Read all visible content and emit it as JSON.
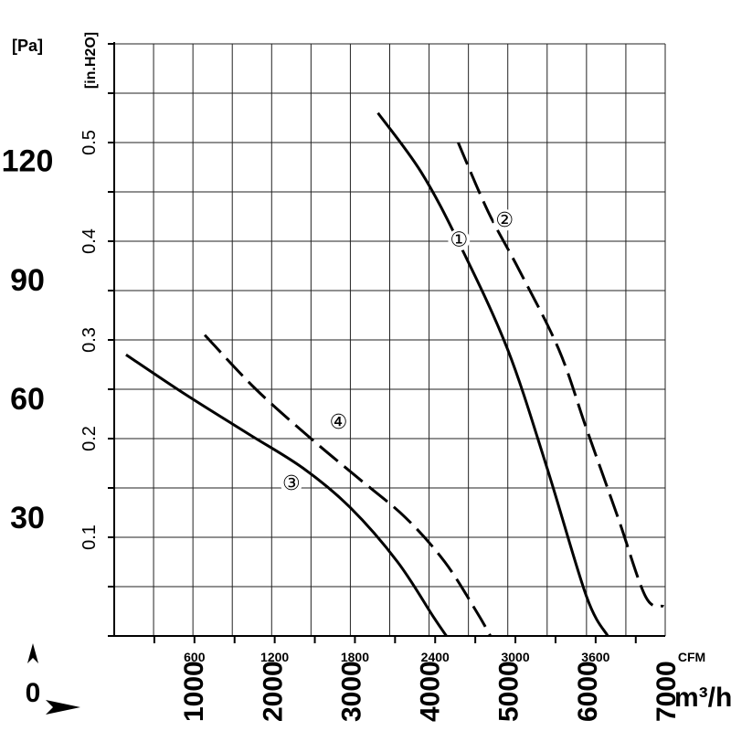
{
  "chart_data": {
    "type": "line",
    "x_units": {
      "primary": "m3/h",
      "secondary": "CFM"
    },
    "y_units": {
      "primary": "Pa",
      "secondary": "in.H2O"
    },
    "xlim": [
      0,
      7000
    ],
    "ylim_inh2o": [
      0,
      0.6
    ],
    "grid": true,
    "labels": {
      "pa_unit": "[Pa]",
      "inh2o_unit": "[in.H2O]",
      "cfm_unit": "CFM",
      "m3h_unit": "m³/h",
      "origin": "0"
    },
    "pa_ticks": [
      {
        "value": 30,
        "label": "30"
      },
      {
        "value": 60,
        "label": "60"
      },
      {
        "value": 90,
        "label": "90"
      },
      {
        "value": 120,
        "label": "120"
      }
    ],
    "inh2o_ticks": [
      {
        "value": 0.1,
        "label": "0.1"
      },
      {
        "value": 0.2,
        "label": "0.2"
      },
      {
        "value": 0.3,
        "label": "0.3"
      },
      {
        "value": 0.4,
        "label": "0.4"
      },
      {
        "value": 0.5,
        "label": "0.5"
      }
    ],
    "cfm_ticks": [
      {
        "value": 600,
        "label": "600"
      },
      {
        "value": 1200,
        "label": "1200"
      },
      {
        "value": 1800,
        "label": "1800"
      },
      {
        "value": 2400,
        "label": "2400"
      },
      {
        "value": 3000,
        "label": "3000"
      },
      {
        "value": 3600,
        "label": "3600"
      }
    ],
    "m3h_ticks": [
      {
        "value": 1000,
        "label": "1000"
      },
      {
        "value": 2000,
        "label": "2000"
      },
      {
        "value": 3000,
        "label": "3000"
      },
      {
        "value": 4000,
        "label": "4000"
      },
      {
        "value": 5000,
        "label": "5000"
      },
      {
        "value": 6000,
        "label": "6000"
      },
      {
        "value": 7000,
        "label": "7000"
      }
    ],
    "series": [
      {
        "name": "①",
        "dash": "solid",
        "points": [
          [
            3350,
            0.53
          ],
          [
            3900,
            0.47
          ],
          [
            4400,
            0.395
          ],
          [
            5000,
            0.29
          ],
          [
            5500,
            0.17
          ],
          [
            6000,
            0.04
          ],
          [
            6270,
            0.0
          ]
        ]
      },
      {
        "name": "②",
        "dash": "dashed",
        "points": [
          [
            4370,
            0.5
          ],
          [
            4750,
            0.43
          ],
          [
            5150,
            0.37
          ],
          [
            5650,
            0.29
          ],
          [
            6000,
            0.21
          ],
          [
            6400,
            0.12
          ],
          [
            6750,
            0.04
          ],
          [
            6980,
            0.03
          ]
        ]
      },
      {
        "name": "③",
        "dash": "solid",
        "points": [
          [
            150,
            0.285
          ],
          [
            900,
            0.245
          ],
          [
            1700,
            0.205
          ],
          [
            2400,
            0.17
          ],
          [
            3000,
            0.13
          ],
          [
            3600,
            0.075
          ],
          [
            4050,
            0.02
          ],
          [
            4220,
            0.0
          ]
        ]
      },
      {
        "name": "④",
        "dash": "dashed",
        "points": [
          [
            1150,
            0.305
          ],
          [
            1800,
            0.25
          ],
          [
            2500,
            0.2
          ],
          [
            3100,
            0.16
          ],
          [
            3700,
            0.12
          ],
          [
            4200,
            0.075
          ],
          [
            4600,
            0.025
          ],
          [
            4780,
            0.0
          ]
        ]
      }
    ],
    "curve_labels": [
      {
        "series": "①",
        "x": 4380,
        "y": 0.395
      },
      {
        "series": "②",
        "x": 4960,
        "y": 0.415
      },
      {
        "series": "③",
        "x": 2250,
        "y": 0.148
      },
      {
        "series": "④",
        "x": 2850,
        "y": 0.21
      }
    ]
  }
}
